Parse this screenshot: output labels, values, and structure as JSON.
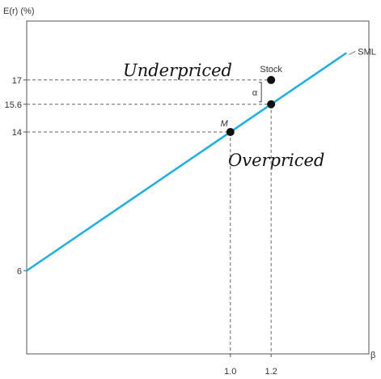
{
  "chart_data": {
    "type": "line",
    "ylabel": "E(r) (%)",
    "xlabel": "β",
    "line_label": "SML",
    "line_color": "#1ab0e6",
    "ylim": [
      1.2,
      20.4
    ],
    "xlim": [
      0,
      1.68
    ],
    "sml": {
      "intercept": 6,
      "slope": 8,
      "x_start": 0,
      "x_end": 1.57
    },
    "y_ticks": [
      {
        "value": 17,
        "label": "17"
      },
      {
        "value": 15.6,
        "label": "15.6"
      },
      {
        "value": 14,
        "label": "14"
      },
      {
        "value": 6,
        "label": "6"
      }
    ],
    "x_ticks": [
      {
        "value": 1.0,
        "label": "1.0"
      },
      {
        "value": 1.2,
        "label": "1.2"
      }
    ],
    "points": [
      {
        "name": "M",
        "x": 1.0,
        "y": 14
      },
      {
        "name": "Stock",
        "x": 1.2,
        "y": 17
      },
      {
        "name": "",
        "x": 1.2,
        "y": 15.6
      }
    ],
    "alpha_label": "α",
    "annotations": {
      "underpriced": "Underpriced",
      "overpriced": "Overpriced"
    }
  }
}
